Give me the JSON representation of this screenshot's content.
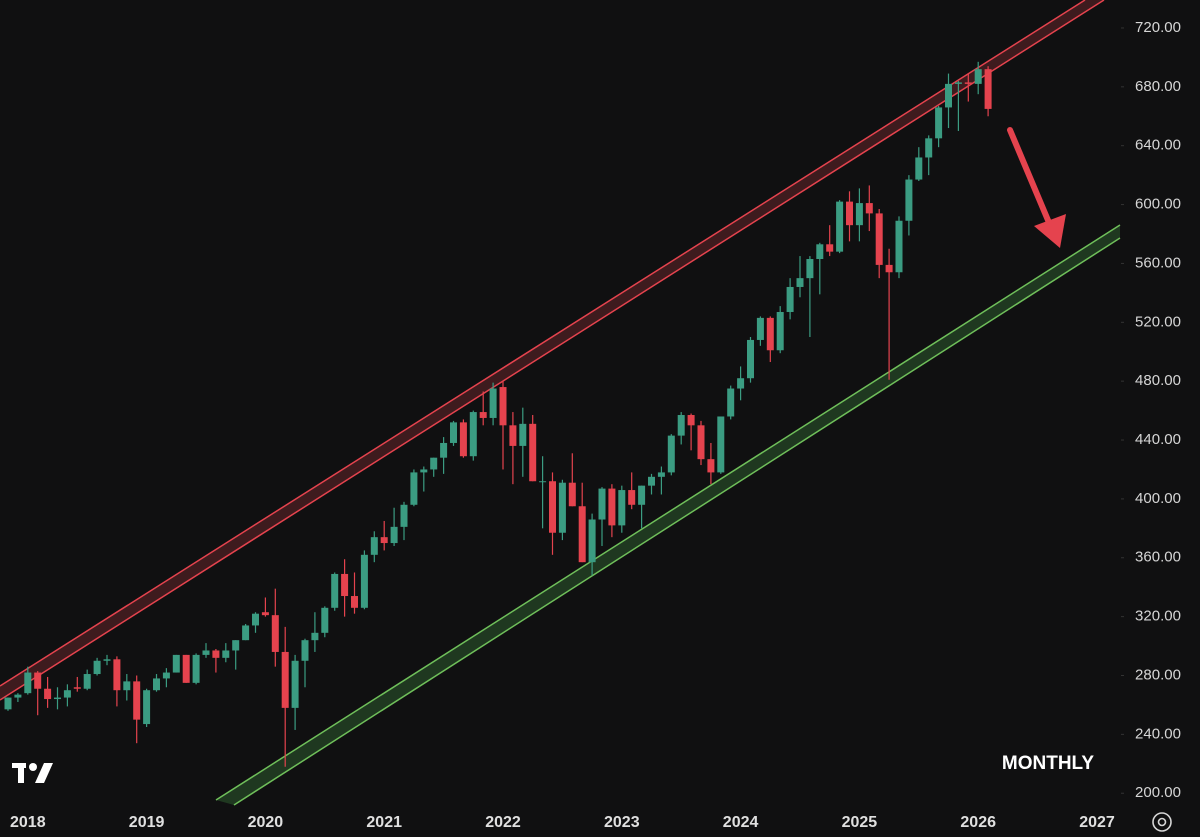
{
  "chart_data": {
    "type": "candlestick",
    "annotation": "MONTHLY",
    "colors": {
      "up": "#3b9c82",
      "down": "#e5434e"
    },
    "grid": false,
    "ylim": [
      192,
      739
    ],
    "yticks": [
      {
        "value": 200,
        "label": "200.00"
      },
      {
        "value": 240,
        "label": "240.00"
      },
      {
        "value": 280,
        "label": "280.00"
      },
      {
        "value": 320,
        "label": "320.00"
      },
      {
        "value": 360,
        "label": "360.00"
      },
      {
        "value": 400,
        "label": "400.00"
      },
      {
        "value": 440,
        "label": "440.00"
      },
      {
        "value": 480,
        "label": "480.00"
      },
      {
        "value": 520,
        "label": "520.00"
      },
      {
        "value": 560,
        "label": "560.00"
      },
      {
        "value": 600,
        "label": "600.00"
      },
      {
        "value": 640,
        "label": "640.00"
      },
      {
        "value": 680,
        "label": "680.00"
      },
      {
        "value": 720,
        "label": "720.00"
      }
    ],
    "categories": [
      null,
      null,
      "2018",
      null,
      null,
      null,
      null,
      null,
      null,
      null,
      null,
      null,
      null,
      null,
      "2019",
      null,
      null,
      null,
      null,
      null,
      null,
      null,
      null,
      null,
      null,
      null,
      "2020",
      null,
      null,
      null,
      null,
      null,
      null,
      null,
      null,
      null,
      null,
      null,
      "2021",
      null,
      null,
      null,
      null,
      null,
      null,
      null,
      null,
      null,
      null,
      null,
      "2022",
      null,
      null,
      null,
      null,
      null,
      null,
      null,
      null,
      null,
      null,
      null,
      "2023",
      null,
      null,
      null,
      null,
      null,
      null,
      null,
      null,
      null,
      null,
      null,
      "2024",
      null,
      null,
      null,
      null,
      null,
      null,
      null,
      null,
      null,
      null,
      null,
      "2025",
      null,
      null,
      null,
      null,
      null,
      null,
      null,
      null,
      null,
      null,
      null,
      "2026",
      null,
      null,
      null,
      null,
      null,
      null,
      null,
      null,
      null,
      null,
      null,
      "2027"
    ],
    "open": [
      257,
      265,
      268,
      282,
      271,
      264,
      265,
      272,
      271,
      281,
      290,
      291,
      270,
      276,
      247,
      270,
      278,
      282,
      294,
      275,
      294,
      297,
      292,
      297,
      304,
      314,
      323,
      321,
      296,
      258,
      290,
      304,
      309,
      326,
      349,
      334,
      326,
      362,
      374,
      370,
      381,
      396,
      418,
      420,
      428,
      438,
      452,
      429,
      459,
      455,
      476,
      450,
      436,
      451,
      412,
      412,
      377,
      411,
      395,
      357,
      386,
      407,
      382,
      406,
      396,
      409,
      415,
      418,
      443,
      457,
      450,
      427,
      418,
      456,
      475,
      482,
      508,
      523,
      501,
      527,
      544,
      550,
      563,
      573,
      568,
      602,
      586,
      601,
      594,
      559,
      554,
      589,
      617,
      632,
      645,
      666,
      682,
      683,
      682,
      692,
      null,
      null,
      null,
      null,
      null,
      null,
      null,
      null,
      null,
      null,
      null
    ],
    "high": [
      265,
      268,
      286,
      283,
      279,
      272,
      274,
      279,
      284,
      292,
      294,
      293,
      281,
      280,
      271,
      281,
      285,
      294,
      294,
      295,
      302,
      298,
      302,
      304,
      315,
      323,
      333,
      339,
      313,
      294,
      305,
      323,
      327,
      350,
      359,
      350,
      365,
      378,
      385,
      394,
      398,
      420,
      422,
      428,
      442,
      453,
      454,
      460,
      473,
      479,
      480,
      459,
      462,
      457,
      429,
      418,
      413,
      431,
      411,
      390,
      408,
      410,
      409,
      418,
      409,
      417,
      422,
      444,
      459,
      458,
      453,
      438,
      456,
      477,
      490,
      510,
      524,
      524,
      531,
      550,
      565,
      565,
      574,
      586,
      603,
      609,
      611,
      613,
      597,
      570,
      592,
      620,
      639,
      647,
      667,
      689,
      684,
      689,
      697,
      694,
      null,
      null,
      null,
      null,
      null,
      null,
      null,
      null,
      null,
      null,
      null
    ],
    "low": [
      256,
      262,
      267,
      253,
      258,
      257,
      259,
      269,
      270,
      280,
      287,
      259,
      263,
      234,
      245,
      269,
      272,
      282,
      275,
      274,
      292,
      282,
      289,
      284,
      304,
      309,
      320,
      286,
      218,
      243,
      272,
      296,
      306,
      324,
      320,
      322,
      325,
      357,
      365,
      368,
      372,
      395,
      405,
      415,
      417,
      436,
      428,
      426,
      450,
      450,
      420,
      410,
      415,
      412,
      380,
      362,
      372,
      395,
      357,
      348,
      368,
      374,
      377,
      393,
      380,
      403,
      403,
      416,
      437,
      433,
      423,
      410,
      417,
      454,
      467,
      479,
      504,
      493,
      499,
      522,
      537,
      510,
      539,
      565,
      567,
      575,
      575,
      582,
      550,
      481,
      550,
      579,
      616,
      620,
      639,
      652,
      650,
      670,
      675,
      660,
      null,
      null,
      null,
      null,
      null,
      null,
      null,
      null,
      null,
      null,
      null
    ],
    "close": [
      265,
      267,
      282,
      271,
      264,
      265,
      270,
      271,
      281,
      290,
      291,
      270,
      276,
      250,
      270,
      278,
      282,
      294,
      275,
      294,
      297,
      292,
      297,
      304,
      314,
      322,
      321,
      296,
      258,
      290,
      304,
      309,
      326,
      349,
      334,
      326,
      362,
      374,
      370,
      381,
      396,
      418,
      420,
      428,
      438,
      452,
      429,
      459,
      455,
      475,
      450,
      436,
      451,
      412,
      412,
      377,
      411,
      395,
      357,
      386,
      407,
      382,
      406,
      396,
      409,
      415,
      418,
      443,
      457,
      450,
      427,
      418,
      456,
      475,
      482,
      508,
      523,
      501,
      527,
      544,
      550,
      563,
      573,
      568,
      602,
      586,
      601,
      594,
      559,
      554,
      589,
      617,
      632,
      645,
      666,
      682,
      683,
      682,
      692,
      665,
      null,
      null,
      null,
      null,
      null,
      null,
      null,
      null,
      null,
      null,
      null
    ]
  }
}
